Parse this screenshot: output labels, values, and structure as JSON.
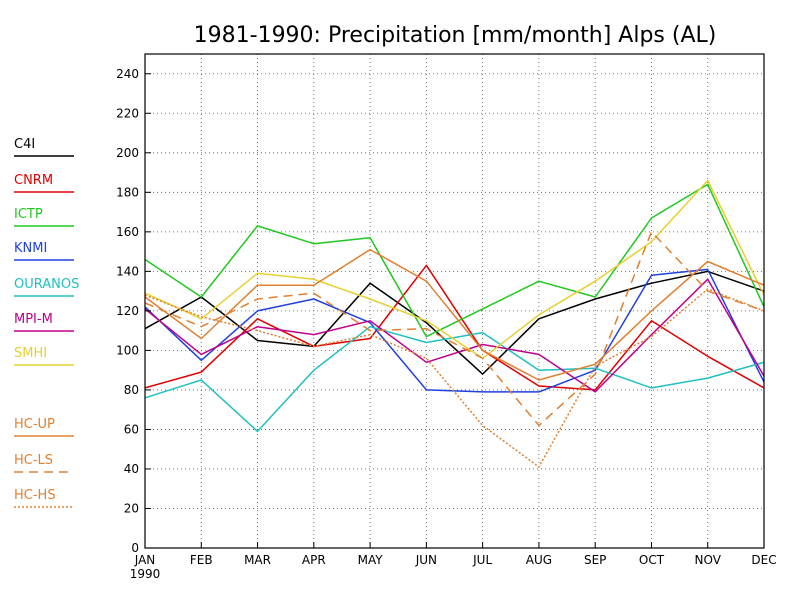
{
  "chart_data": {
    "type": "line",
    "title": "1981-1990: Precipitation [mm/month] Alps (AL)",
    "xlabel": "",
    "ylabel": "",
    "categories": [
      "JAN",
      "FEB",
      "MAR",
      "APR",
      "MAY",
      "JUN",
      "JUL",
      "AUG",
      "SEP",
      "OCT",
      "NOV",
      "DEC"
    ],
    "first_tick_year": "1990",
    "ylim": [
      0,
      250
    ],
    "yticks": [
      0,
      20,
      40,
      60,
      80,
      100,
      120,
      140,
      160,
      180,
      200,
      220,
      240
    ],
    "grid": true,
    "legend_position": "left",
    "series": [
      {
        "name": "C4I",
        "color": "#000000",
        "dash": "solid",
        "values": [
          111,
          127,
          105,
          102,
          134,
          114,
          88,
          116,
          126,
          134,
          140,
          130
        ]
      },
      {
        "name": "CNRM",
        "color": "#e00000",
        "dash": "solid",
        "values": [
          81,
          89,
          116,
          102,
          106,
          143,
          100,
          82,
          80,
          115,
          97,
          81
        ]
      },
      {
        "name": "ICTP",
        "color": "#20c820",
        "dash": "solid",
        "values": [
          146,
          127,
          163,
          154,
          157,
          107,
          121,
          135,
          127,
          167,
          184,
          122
        ]
      },
      {
        "name": "KNMI",
        "color": "#2040e0",
        "dash": "solid",
        "values": [
          122,
          95,
          120,
          126,
          114,
          80,
          79,
          79,
          90,
          138,
          141,
          84
        ]
      },
      {
        "name": "OURANOS",
        "color": "#20c0c0",
        "dash": "solid",
        "values": [
          76,
          85,
          59,
          90,
          112,
          104,
          109,
          90,
          91,
          81,
          86,
          94
        ]
      },
      {
        "name": "MPI-M",
        "color": "#c0008c",
        "dash": "solid",
        "values": [
          121,
          98,
          112,
          108,
          115,
          94,
          103,
          98,
          79,
          108,
          136,
          87
        ]
      },
      {
        "name": "SMHI",
        "color": "#e8d030",
        "dash": "solid",
        "values": [
          129,
          116,
          139,
          136,
          126,
          115,
          96,
          118,
          135,
          155,
          186,
          128
        ]
      },
      {
        "name": "HC-UP",
        "color": "#e08030",
        "dash": "solid",
        "values": [
          127,
          106,
          133,
          133,
          151,
          135,
          100,
          85,
          93,
          120,
          145,
          133
        ]
      },
      {
        "name": "HC-LS",
        "color": "#e08030",
        "dash": "dash",
        "values": [
          124,
          112,
          126,
          129,
          110,
          111,
          96,
          62,
          88,
          160,
          130,
          120
        ]
      },
      {
        "name": "HC-HS",
        "color": "#e08030",
        "dash": "dot",
        "values": [
          128,
          117,
          110,
          102,
          108,
          96,
          62,
          41,
          92,
          107,
          131,
          120
        ]
      }
    ]
  }
}
